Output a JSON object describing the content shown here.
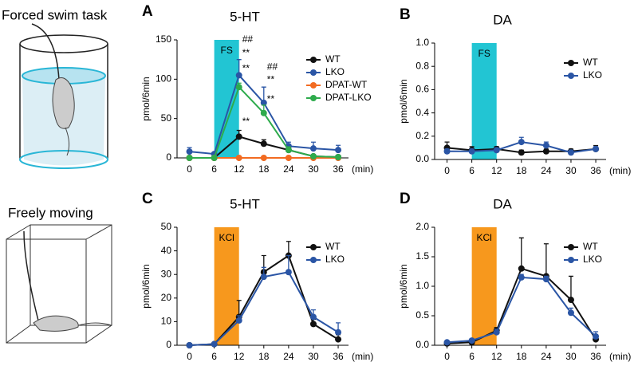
{
  "illustrations": {
    "labels": [
      "Forced swim task",
      "Freely moving"
    ]
  },
  "chart_data": [
    {
      "type": "line",
      "panel": "A",
      "title": "5-HT",
      "y_label": "pmol/6min",
      "x_label": "(min)",
      "x": [
        0,
        6,
        12,
        18,
        24,
        30,
        36
      ],
      "xlim": [
        -3,
        38.5
      ],
      "xticks": [
        0,
        6,
        12,
        18,
        24,
        30,
        36
      ],
      "ylim": [
        0,
        150
      ],
      "yticks": [
        0,
        50,
        100,
        150
      ],
      "legend": "top-right",
      "shade": {
        "label": "FS",
        "x": [
          6,
          12
        ],
        "color": "#22c5d3"
      },
      "series": [
        {
          "name": "WT",
          "color": "#111111",
          "values": [
            0,
            0,
            27,
            18,
            10,
            2,
            1
          ],
          "errors": [
            1,
            1,
            8,
            5,
            3,
            1,
            1
          ]
        },
        {
          "name": "LKO",
          "color": "#2a55a5",
          "values": [
            8,
            5,
            105,
            70,
            15,
            12,
            10
          ],
          "errors": [
            5,
            2,
            20,
            20,
            5,
            8,
            6
          ]
        },
        {
          "name": "DPAT-WT",
          "color": "#f26b21",
          "values": [
            0,
            0,
            0,
            0,
            0,
            0,
            0
          ],
          "errors": [
            0.5,
            0.5,
            0.5,
            0.5,
            0.5,
            0.5,
            0.5
          ]
        },
        {
          "name": "DPAT-LKO",
          "color": "#2eab4c",
          "values": [
            0,
            0,
            90,
            57,
            10,
            2,
            1
          ],
          "errors": [
            1,
            1,
            5,
            10,
            4,
            2,
            1
          ]
        }
      ],
      "annotations": [
        {
          "text": "##",
          "x": 12,
          "y": 150
        },
        {
          "text": "**",
          "x": 12,
          "y": 133
        },
        {
          "text": "**",
          "x": 12,
          "y": 113
        },
        {
          "text": "**",
          "x": 12,
          "y": 46
        },
        {
          "text": "##",
          "x": 18,
          "y": 115
        },
        {
          "text": "**",
          "x": 18,
          "y": 99
        },
        {
          "text": "**",
          "x": 18,
          "y": 74
        }
      ]
    },
    {
      "type": "line",
      "panel": "B",
      "title": "DA",
      "y_label": "pmol/6min",
      "x_label": "(min)",
      "x": [
        0,
        6,
        12,
        18,
        24,
        30,
        36
      ],
      "xlim": [
        -3,
        38.5
      ],
      "xticks": [
        0,
        6,
        12,
        18,
        24,
        30,
        36
      ],
      "ylim": [
        0,
        1
      ],
      "yticks": [
        {
          "value": 0,
          "label": "0.0"
        },
        0.2,
        0.4,
        0.6,
        0.8,
        {
          "value": 1,
          "label": "1.0"
        }
      ],
      "legend": "top-right",
      "shade": {
        "label": "FS",
        "x": [
          6,
          12
        ],
        "color": "#22c5d3"
      },
      "series": [
        {
          "name": "WT",
          "color": "#111111",
          "values": [
            0.1,
            0.08,
            0.09,
            0.06,
            0.07,
            0.07,
            0.09
          ],
          "errors": [
            0.05,
            0.03,
            0.02,
            0.02,
            0.02,
            0.02,
            0.03
          ]
        },
        {
          "name": "LKO",
          "color": "#2a55a5",
          "values": [
            0.07,
            0.07,
            0.08,
            0.15,
            0.12,
            0.06,
            0.09
          ],
          "errors": [
            0.02,
            0.02,
            0.02,
            0.04,
            0.03,
            0.02,
            0.02
          ]
        }
      ]
    },
    {
      "type": "line",
      "panel": "C",
      "title": "5-HT",
      "y_label": "pmol/6min",
      "x_label": "(min)",
      "x": [
        0,
        6,
        12,
        18,
        24,
        30,
        36
      ],
      "xlim": [
        -3,
        38.5
      ],
      "xticks": [
        0,
        6,
        12,
        18,
        24,
        30,
        36
      ],
      "ylim": [
        0,
        50
      ],
      "yticks": [
        0,
        10,
        20,
        30,
        40,
        50
      ],
      "legend": "top-right",
      "shade": {
        "label": "KCl",
        "x": [
          6,
          12
        ],
        "color": "#f7981d"
      },
      "series": [
        {
          "name": "WT",
          "color": "#111111",
          "values": [
            0,
            0.5,
            12,
            31,
            38,
            9,
            2.5
          ],
          "errors": [
            0.3,
            0.3,
            7,
            7,
            6,
            2,
            2
          ]
        },
        {
          "name": "LKO",
          "color": "#2a55a5",
          "values": [
            0,
            0.5,
            10.5,
            29,
            31,
            12,
            5.5
          ],
          "errors": [
            0.3,
            0.3,
            2,
            4,
            7,
            3,
            4
          ]
        }
      ]
    },
    {
      "type": "line",
      "panel": "D",
      "title": "DA",
      "y_label": "pmol/6min",
      "x_label": "(min)",
      "x": [
        0,
        6,
        12,
        18,
        24,
        30,
        36
      ],
      "xlim": [
        -3,
        38.5
      ],
      "xticks": [
        0,
        6,
        12,
        18,
        24,
        30,
        36
      ],
      "ylim": [
        0,
        2
      ],
      "yticks": [
        {
          "value": 0,
          "label": "0.0"
        },
        0.5,
        {
          "value": 1,
          "label": "1.0"
        },
        1.5,
        {
          "value": 2,
          "label": "2.0"
        }
      ],
      "legend": "top-right",
      "shade": {
        "label": "KCl",
        "x": [
          6,
          12
        ],
        "color": "#f7981d"
      },
      "series": [
        {
          "name": "WT",
          "color": "#111111",
          "values": [
            0.03,
            0.05,
            0.25,
            1.3,
            1.17,
            0.77,
            0.1
          ],
          "errors": [
            0.02,
            0.05,
            0.05,
            0.52,
            0.55,
            0.4,
            0.08
          ]
        },
        {
          "name": "LKO",
          "color": "#2a55a5",
          "values": [
            0.05,
            0.08,
            0.22,
            1.15,
            1.12,
            0.55,
            0.15
          ],
          "errors": [
            0.02,
            0.03,
            0.05,
            0.05,
            0.05,
            0.08,
            0.08
          ]
        }
      ]
    }
  ]
}
